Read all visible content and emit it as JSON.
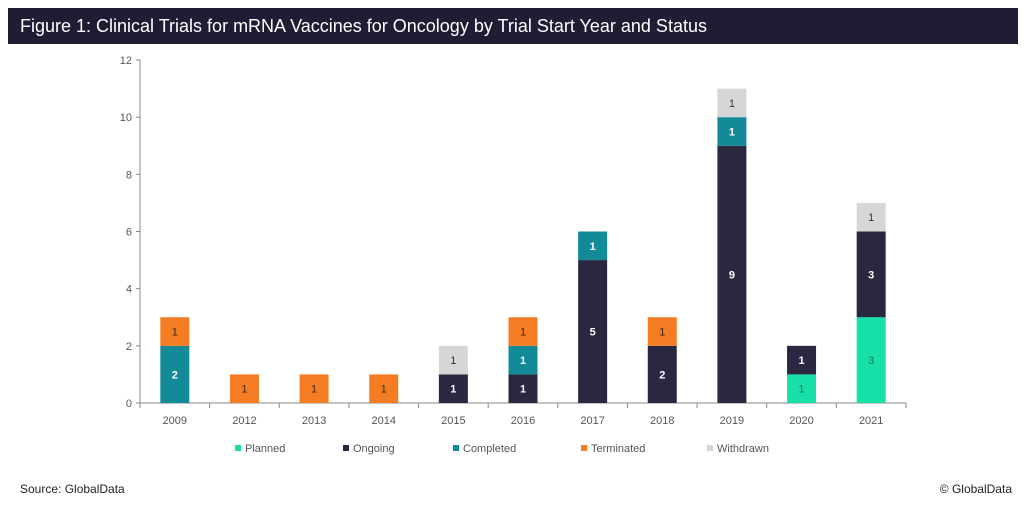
{
  "title": "Figure 1: Clinical Trials for mRNA Vaccines for Oncology by Trial Start Year and Status",
  "footer": {
    "source": "Source: GlobalData",
    "copyright": "© GlobalData"
  },
  "chart_data": {
    "type": "bar",
    "stacked": true,
    "categories": [
      "2009",
      "2012",
      "2013",
      "2014",
      "2015",
      "2016",
      "2017",
      "2018",
      "2019",
      "2020",
      "2021"
    ],
    "series": [
      {
        "name": "Planned",
        "color": "#17e0a8",
        "label_color": "#1a7a5e",
        "values": [
          0,
          0,
          0,
          0,
          0,
          0,
          0,
          0,
          0,
          1,
          3
        ]
      },
      {
        "name": "Ongoing",
        "color": "#2a2840",
        "label_color": "#ffffff",
        "values": [
          0,
          0,
          0,
          0,
          1,
          1,
          5,
          2,
          9,
          1,
          3
        ]
      },
      {
        "name": "Completed",
        "color": "#138a98",
        "label_color": "#ffffff",
        "values": [
          2,
          0,
          0,
          0,
          0,
          1,
          1,
          0,
          1,
          0,
          0
        ]
      },
      {
        "name": "Terminated",
        "color": "#f47c22",
        "label_color": "#3a2a1a",
        "values": [
          1,
          1,
          1,
          1,
          0,
          1,
          0,
          1,
          0,
          0,
          0
        ]
      },
      {
        "name": "Withdrawn",
        "color": "#d6d6d6",
        "label_color": "#333333",
        "values": [
          0,
          0,
          0,
          0,
          1,
          0,
          0,
          0,
          1,
          0,
          1
        ]
      }
    ],
    "ylim": [
      0,
      12
    ],
    "yticks": [
      0,
      2,
      4,
      6,
      8,
      10,
      12
    ],
    "xlabel": "",
    "ylabel": "",
    "grid": false,
    "legend_position": "bottom"
  }
}
